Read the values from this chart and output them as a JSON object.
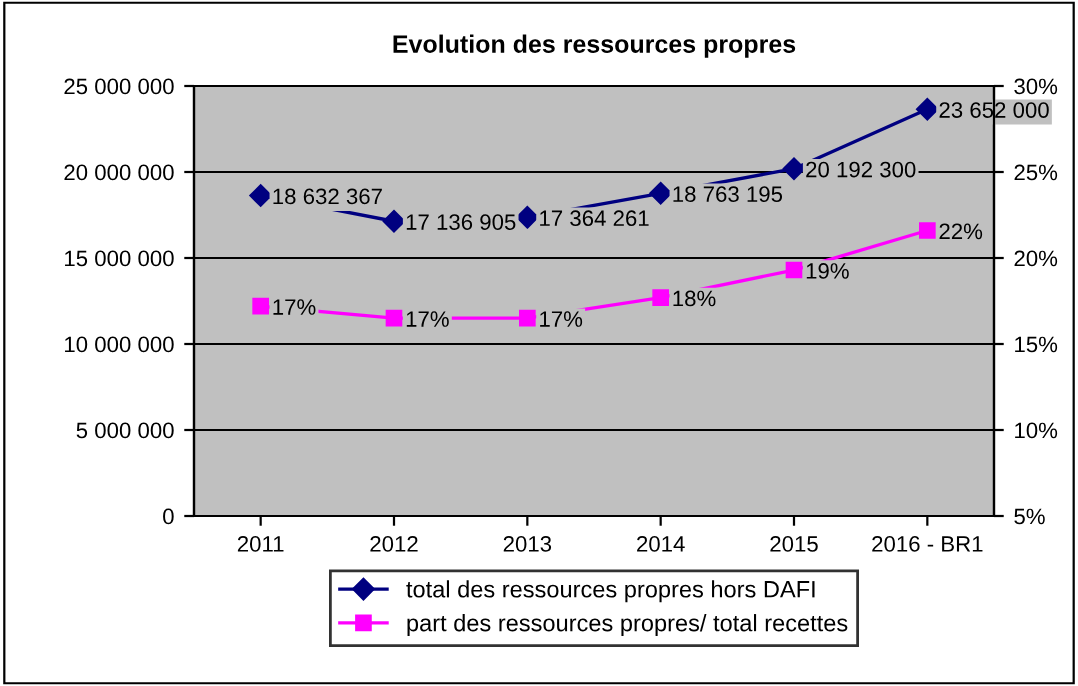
{
  "chart_data": {
    "type": "line",
    "title": "Evolution des ressources propres",
    "categories": [
      "2011",
      "2012",
      "2013",
      "2014",
      "2015",
      "2016 - BR1"
    ],
    "series": [
      {
        "name": "total des ressources propres hors DAFI",
        "color": "#000080",
        "marker": "diamond",
        "values": [
          18632367,
          17136905,
          17364261,
          18763195,
          20192300,
          23652000
        ],
        "value_labels": [
          "18 632 367",
          "17 136 905",
          "17 364 261",
          "18 763 195",
          "20 192 300",
          "23 652 000"
        ]
      },
      {
        "name": "part des ressources propres/ total recettes",
        "color": "#ff00ff",
        "marker": "square",
        "axis": "y2",
        "values": [
          17.2,
          16.5,
          16.5,
          17.7,
          19.3,
          21.6
        ],
        "value_labels": [
          "17%",
          "17%",
          "17%",
          "18%",
          "19%",
          "22%"
        ]
      }
    ],
    "ylim": [
      0,
      25000000
    ],
    "yticks": [
      {
        "value": 0,
        "label": "0"
      },
      {
        "value": 5000000,
        "label": "5 000 000"
      },
      {
        "value": 10000000,
        "label": "10 000 000"
      },
      {
        "value": 15000000,
        "label": "15 000 000"
      },
      {
        "value": 20000000,
        "label": "20 000 000"
      },
      {
        "value": 25000000,
        "label": "25 000 000"
      }
    ],
    "y2lim": [
      5,
      30
    ],
    "y2ticks": [
      {
        "value": 5,
        "label": "5%"
      },
      {
        "value": 10,
        "label": "10%"
      },
      {
        "value": 15,
        "label": "15%"
      },
      {
        "value": 20,
        "label": "20%"
      },
      {
        "value": 25,
        "label": "25%"
      },
      {
        "value": 30,
        "label": "30%"
      }
    ],
    "grid": "y",
    "legend": "bottom",
    "line_style": "solid"
  }
}
